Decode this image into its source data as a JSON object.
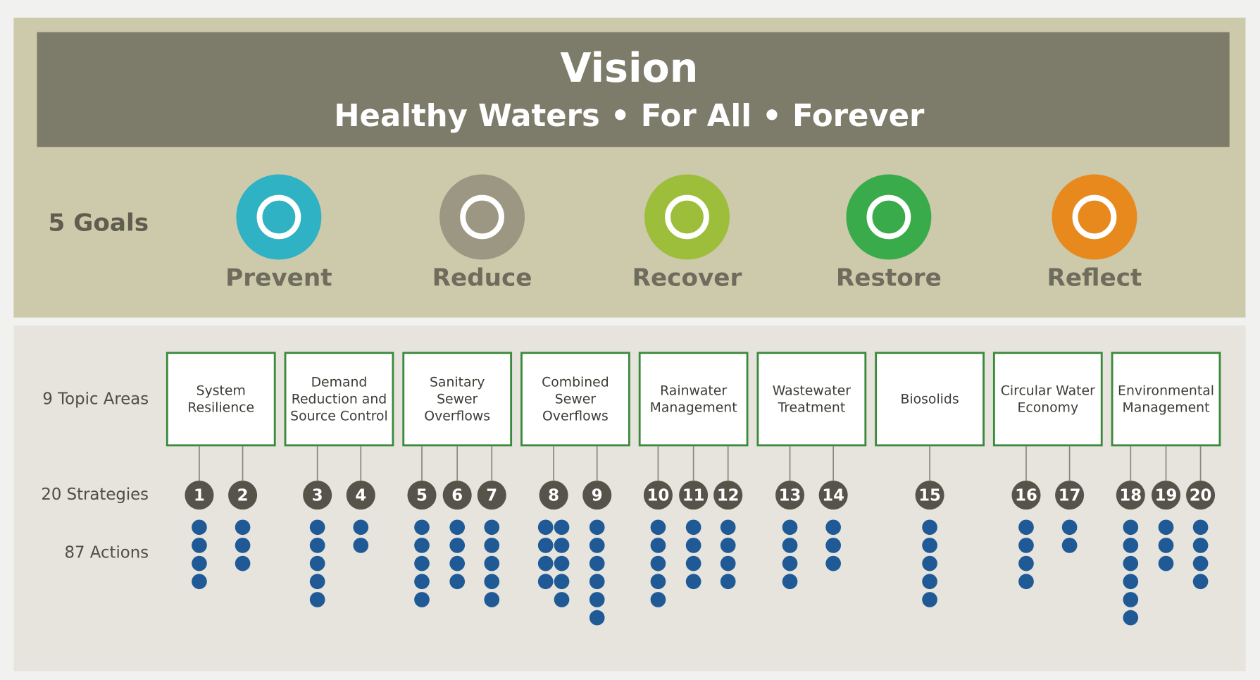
{
  "vision": {
    "title": "Vision",
    "subtitle": "Healthy Waters • For All • Forever"
  },
  "goals": {
    "label": "5 Goals",
    "items": [
      {
        "name": "Prevent",
        "color": "#2fb2c3"
      },
      {
        "name": "Reduce",
        "color": "#9b9782"
      },
      {
        "name": "Recover",
        "color": "#9cbe3b"
      },
      {
        "name": "Restore",
        "color": "#3aab4b"
      },
      {
        "name": "Reflect",
        "color": "#e8891e"
      }
    ]
  },
  "rows": {
    "topics": "9 Topic Areas",
    "strategies": "20 Strategies",
    "actions": "87 Actions"
  },
  "topics": [
    {
      "lines": [
        "System",
        "Resilience"
      ],
      "strategies": [
        {
          "label": "1",
          "actions": 4
        },
        {
          "label": "2",
          "actions": 3
        }
      ]
    },
    {
      "lines": [
        "Demand",
        "Reduction and",
        "Source Control"
      ],
      "strategies": [
        {
          "label": "3",
          "actions": 5
        },
        {
          "label": "4",
          "actions": 2
        }
      ]
    },
    {
      "lines": [
        "Sanitary",
        "Sewer",
        "Overflows"
      ],
      "strategies": [
        {
          "label": "5",
          "actions": 5
        },
        {
          "label": "6",
          "actions": 4
        },
        {
          "label": "7",
          "actions": 5
        }
      ]
    },
    {
      "lines": [
        "Combined",
        "Sewer",
        "Overflows"
      ],
      "strategies": [
        {
          "label": "8",
          "actions": 9
        },
        {
          "label": "9",
          "actions": 6
        }
      ]
    },
    {
      "lines": [
        "Rainwater",
        "Management"
      ],
      "strategies": [
        {
          "label": "10",
          "actions": 5
        },
        {
          "label": "11",
          "actions": 4
        },
        {
          "label": "12",
          "actions": 4
        }
      ]
    },
    {
      "lines": [
        "Wastewater",
        "Treatment"
      ],
      "strategies": [
        {
          "label": "13",
          "actions": 4
        },
        {
          "label": "14",
          "actions": 3
        }
      ]
    },
    {
      "lines": [
        "Biosolids"
      ],
      "strategies": [
        {
          "label": "15",
          "actions": 5
        }
      ]
    },
    {
      "lines": [
        "Circular Water",
        "Economy"
      ],
      "strategies": [
        {
          "label": "16",
          "actions": 4
        },
        {
          "label": "17",
          "actions": 2
        }
      ]
    },
    {
      "lines": [
        "Environmental",
        "Management"
      ],
      "strategies": [
        {
          "label": "18",
          "actions": 6
        },
        {
          "label": "19",
          "actions": 3
        },
        {
          "label": "20",
          "actions": 4
        }
      ]
    }
  ]
}
